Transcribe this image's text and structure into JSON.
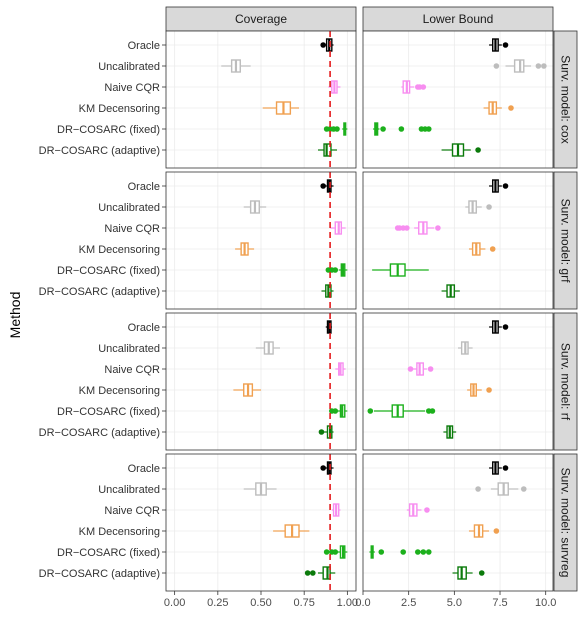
{
  "chart_data": {
    "type": "boxplot",
    "ylabel": "Method",
    "methods": [
      "Oracle",
      "Uncalibrated",
      "Naive CQR",
      "KM Decensoring",
      "DR−COSARC (fixed)",
      "DR−COSARC (adaptive)"
    ],
    "colors": [
      "#000000",
      "#bdbdbd",
      "#f78ef0",
      "#f0a050",
      "#1cb01c",
      "#0b7a0b"
    ],
    "columns": [
      {
        "label": "Coverage",
        "xlim": [
          -0.05,
          1.05
        ],
        "ticks": [
          0.0,
          0.25,
          0.5,
          0.75,
          1.0
        ],
        "tick_labels": [
          "0.00",
          "0.25",
          "0.50",
          "0.75",
          "1.00"
        ],
        "reference_line": 0.9
      },
      {
        "label": "Lower Bound",
        "xlim": [
          0,
          10.4
        ],
        "ticks": [
          0,
          2.5,
          5.0,
          7.5,
          10.0
        ],
        "tick_labels": [
          "0.0",
          "2.5",
          "5.0",
          "7.5",
          "10.0"
        ]
      }
    ],
    "rows": [
      {
        "label": "Surv. model: cox",
        "panels": [
          [
            {
              "q1": 0.88,
              "med": 0.895,
              "q3": 0.91,
              "wlo": 0.87,
              "whi": 0.92,
              "out": [
                0.86
              ]
            },
            {
              "q1": 0.33,
              "med": 0.355,
              "q3": 0.38,
              "wlo": 0.27,
              "whi": 0.44,
              "out": []
            },
            {
              "q1": 0.91,
              "med": 0.925,
              "q3": 0.94,
              "wlo": 0.89,
              "whi": 0.96,
              "out": []
            },
            {
              "q1": 0.59,
              "med": 0.63,
              "q3": 0.67,
              "wlo": 0.51,
              "whi": 0.72,
              "out": []
            },
            {
              "q1": 0.98,
              "med": 0.985,
              "q3": 0.99,
              "wlo": 0.97,
              "whi": 1.0,
              "out": [
                0.88,
                0.9,
                0.92,
                0.94
              ]
            },
            {
              "q1": 0.865,
              "med": 0.88,
              "q3": 0.905,
              "wlo": 0.83,
              "whi": 0.94,
              "out": []
            }
          ],
          [
            {
              "q1": 7.1,
              "med": 7.25,
              "q3": 7.4,
              "wlo": 6.9,
              "whi": 7.6,
              "out": [
                7.8
              ]
            },
            {
              "q1": 8.3,
              "med": 8.6,
              "q3": 8.8,
              "wlo": 7.8,
              "whi": 9.2,
              "out": [
                7.3,
                9.6,
                9.9
              ]
            },
            {
              "q1": 2.2,
              "med": 2.4,
              "q3": 2.55,
              "wlo": 2.1,
              "whi": 2.8,
              "out": [
                3.0,
                3.1,
                3.3
              ]
            },
            {
              "q1": 6.9,
              "med": 7.1,
              "q3": 7.3,
              "wlo": 6.6,
              "whi": 7.6,
              "out": [
                8.1
              ]
            },
            {
              "q1": 0.65,
              "med": 0.72,
              "q3": 0.8,
              "wlo": 0.55,
              "whi": 0.9,
              "out": [
                1.1,
                2.1,
                3.2,
                3.4,
                3.6
              ]
            },
            {
              "q1": 4.9,
              "med": 5.2,
              "q3": 5.5,
              "wlo": 4.3,
              "whi": 5.9,
              "out": [
                6.3
              ]
            }
          ]
        ]
      },
      {
        "label": "Surv. model: grf",
        "panels": [
          [
            {
              "q1": 0.885,
              "med": 0.895,
              "q3": 0.905,
              "wlo": 0.87,
              "whi": 0.92,
              "out": [
                0.86
              ]
            },
            {
              "q1": 0.44,
              "med": 0.465,
              "q3": 0.49,
              "wlo": 0.4,
              "whi": 0.53,
              "out": []
            },
            {
              "q1": 0.93,
              "med": 0.95,
              "q3": 0.965,
              "wlo": 0.9,
              "whi": 0.99,
              "out": []
            },
            {
              "q1": 0.385,
              "med": 0.405,
              "q3": 0.425,
              "wlo": 0.35,
              "whi": 0.46,
              "out": []
            },
            {
              "q1": 0.965,
              "med": 0.975,
              "q3": 0.985,
              "wlo": 0.95,
              "whi": 1.0,
              "out": [
                0.89,
                0.91,
                0.93
              ]
            },
            {
              "q1": 0.875,
              "med": 0.89,
              "q3": 0.905,
              "wlo": 0.85,
              "whi": 0.92,
              "out": []
            }
          ],
          [
            {
              "q1": 7.1,
              "med": 7.25,
              "q3": 7.4,
              "wlo": 6.9,
              "whi": 7.6,
              "out": [
                7.8
              ]
            },
            {
              "q1": 5.8,
              "med": 6.0,
              "q3": 6.2,
              "wlo": 5.6,
              "whi": 6.5,
              "out": [
                6.9
              ]
            },
            {
              "q1": 3.05,
              "med": 3.3,
              "q3": 3.5,
              "wlo": 2.8,
              "whi": 3.9,
              "out": [
                1.9,
                2.0,
                2.2,
                2.4,
                4.1
              ]
            },
            {
              "q1": 6.0,
              "med": 6.2,
              "q3": 6.4,
              "wlo": 5.8,
              "whi": 6.7,
              "out": [
                7.1
              ]
            },
            {
              "q1": 1.5,
              "med": 1.9,
              "q3": 2.3,
              "wlo": 0.5,
              "whi": 3.6,
              "out": []
            },
            {
              "q1": 4.6,
              "med": 4.8,
              "q3": 5.0,
              "wlo": 4.3,
              "whi": 5.3,
              "out": []
            }
          ]
        ]
      },
      {
        "label": "Surv. model: rf",
        "panels": [
          [
            {
              "q1": 0.885,
              "med": 0.895,
              "q3": 0.905,
              "wlo": 0.875,
              "whi": 0.91,
              "out": []
            },
            {
              "q1": 0.52,
              "med": 0.545,
              "q3": 0.57,
              "wlo": 0.47,
              "whi": 0.61,
              "out": []
            },
            {
              "q1": 0.95,
              "med": 0.96,
              "q3": 0.975,
              "wlo": 0.93,
              "whi": 0.99,
              "out": []
            },
            {
              "q1": 0.4,
              "med": 0.425,
              "q3": 0.45,
              "wlo": 0.34,
              "whi": 0.5,
              "out": []
            },
            {
              "q1": 0.96,
              "med": 0.97,
              "q3": 0.985,
              "wlo": 0.94,
              "whi": 1.0,
              "out": [
                0.91,
                0.93
              ]
            },
            {
              "q1": 0.885,
              "med": 0.9,
              "q3": 0.91,
              "wlo": 0.86,
              "whi": 0.92,
              "out": [
                0.85
              ]
            }
          ],
          [
            {
              "q1": 7.1,
              "med": 7.25,
              "q3": 7.4,
              "wlo": 6.9,
              "whi": 7.6,
              "out": [
                7.8
              ]
            },
            {
              "q1": 5.4,
              "med": 5.6,
              "q3": 5.75,
              "wlo": 5.2,
              "whi": 6.0,
              "out": []
            },
            {
              "q1": 2.95,
              "med": 3.1,
              "q3": 3.3,
              "wlo": 2.7,
              "whi": 3.5,
              "out": [
                2.6,
                3.7
              ]
            },
            {
              "q1": 5.9,
              "med": 6.05,
              "q3": 6.2,
              "wlo": 5.7,
              "whi": 6.5,
              "out": [
                6.9
              ]
            },
            {
              "q1": 1.6,
              "med": 1.9,
              "q3": 2.2,
              "wlo": 0.6,
              "whi": 3.4,
              "out": [
                0.4,
                3.6,
                3.8
              ]
            },
            {
              "q1": 4.6,
              "med": 4.75,
              "q3": 4.9,
              "wlo": 4.4,
              "whi": 5.1,
              "out": []
            }
          ]
        ]
      },
      {
        "label": "Surv. model: survreg",
        "panels": [
          [
            {
              "q1": 0.885,
              "med": 0.895,
              "q3": 0.905,
              "wlo": 0.87,
              "whi": 0.92,
              "out": [
                0.86
              ]
            },
            {
              "q1": 0.47,
              "med": 0.5,
              "q3": 0.53,
              "wlo": 0.4,
              "whi": 0.59,
              "out": []
            },
            {
              "q1": 0.92,
              "med": 0.935,
              "q3": 0.95,
              "wlo": 0.91,
              "whi": 0.96,
              "out": []
            },
            {
              "q1": 0.64,
              "med": 0.68,
              "q3": 0.72,
              "wlo": 0.57,
              "whi": 0.78,
              "out": []
            },
            {
              "q1": 0.96,
              "med": 0.975,
              "q3": 0.985,
              "wlo": 0.94,
              "whi": 1.0,
              "out": [
                0.88,
                0.91,
                0.93
              ]
            },
            {
              "q1": 0.86,
              "med": 0.885,
              "q3": 0.9,
              "wlo": 0.83,
              "whi": 0.93,
              "out": [
                0.77,
                0.8
              ]
            }
          ],
          [
            {
              "q1": 7.1,
              "med": 7.25,
              "q3": 7.4,
              "wlo": 6.9,
              "whi": 7.6,
              "out": [
                7.8
              ]
            },
            {
              "q1": 7.4,
              "med": 7.7,
              "q3": 7.95,
              "wlo": 7.0,
              "whi": 8.5,
              "out": [
                6.3,
                8.8
              ]
            },
            {
              "q1": 2.55,
              "med": 2.75,
              "q3": 2.95,
              "wlo": 2.4,
              "whi": 3.2,
              "out": [
                3.5
              ]
            },
            {
              "q1": 6.1,
              "med": 6.35,
              "q3": 6.55,
              "wlo": 5.8,
              "whi": 6.9,
              "out": [
                7.3
              ]
            },
            {
              "q1": 0.45,
              "med": 0.5,
              "q3": 0.55,
              "wlo": 0.35,
              "whi": 0.65,
              "out": [
                1.0,
                2.2,
                3.0,
                3.3,
                3.6
              ]
            },
            {
              "q1": 5.2,
              "med": 5.4,
              "q3": 5.65,
              "wlo": 4.9,
              "whi": 6.0,
              "out": [
                6.5
              ]
            }
          ]
        ]
      }
    ]
  }
}
